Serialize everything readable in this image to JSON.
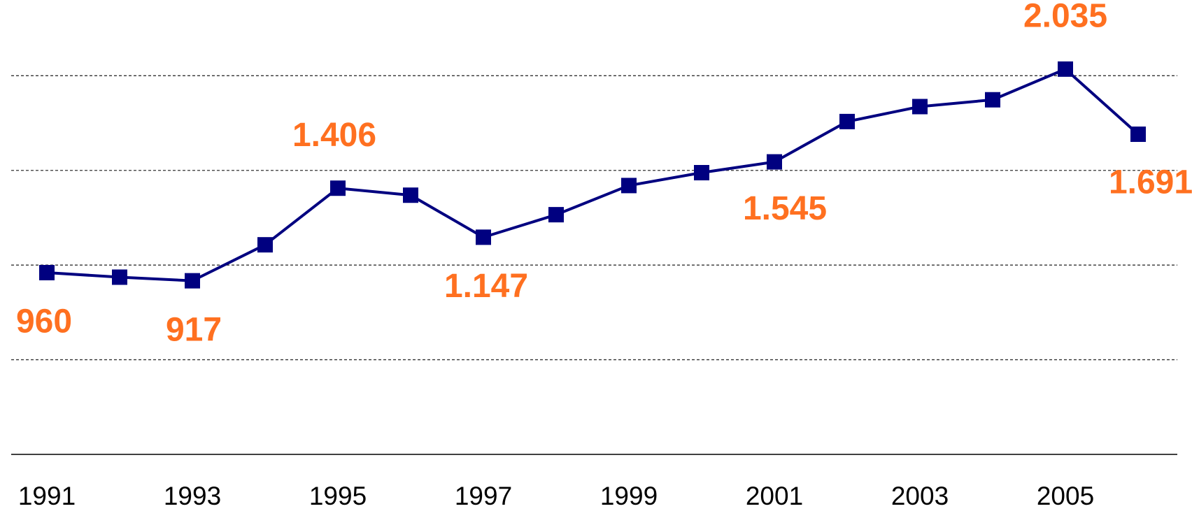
{
  "chart_data": {
    "type": "line",
    "categories": [
      "1991",
      null,
      "1993",
      null,
      "1995",
      null,
      "1997",
      null,
      "1999",
      null,
      "2001",
      null,
      "2003",
      null,
      "2005",
      null
    ],
    "series": [
      {
        "color": "#000080",
        "values": [
          960,
          936,
          917,
          1107,
          1406,
          1369,
          1147,
          1266,
          1420,
          1488,
          1545,
          1758,
          1837,
          1873,
          2035,
          1691
        ],
        "value_labels": [
          "960",
          null,
          "917",
          null,
          "1.406",
          null,
          "1.147",
          null,
          null,
          null,
          "1.545",
          null,
          null,
          null,
          "2.035",
          "1.691"
        ]
      }
    ],
    "label_color": "#ff7020",
    "ylim": [
      0,
      2400
    ],
    "yticks": [
      0,
      500,
      1000,
      1500,
      2000
    ],
    "grid": true
  }
}
